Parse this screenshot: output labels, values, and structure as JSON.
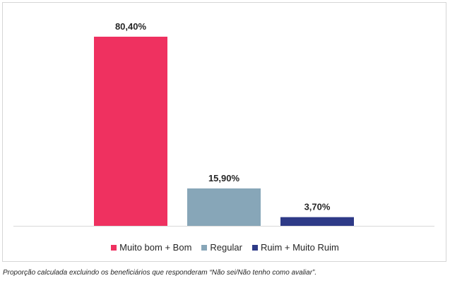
{
  "chart_data": {
    "type": "bar",
    "categories": [
      "Muito bom + Bom",
      "Regular",
      "Ruim + Muito Ruim"
    ],
    "values": [
      80.4,
      15.9,
      3.7
    ],
    "value_labels": [
      "80,40%",
      "15,90%",
      "3,70%"
    ],
    "colors": [
      "#EF3160",
      "#87A6B8",
      "#2E3A87"
    ],
    "title": "",
    "xlabel": "",
    "ylabel": "",
    "ylim": [
      0,
      90
    ],
    "grid": false,
    "legend_position": "bottom"
  },
  "legend": {
    "items": [
      {
        "label": "Muito bom + Bom",
        "color": "#EF3160"
      },
      {
        "label": "Regular",
        "color": "#87A6B8"
      },
      {
        "label": "Ruim + Muito Ruim",
        "color": "#2E3A87"
      }
    ]
  },
  "footnote": "Proporção calculada excluindo os beneficiários que responderam “Não sei/Não tenho como avaliar”."
}
